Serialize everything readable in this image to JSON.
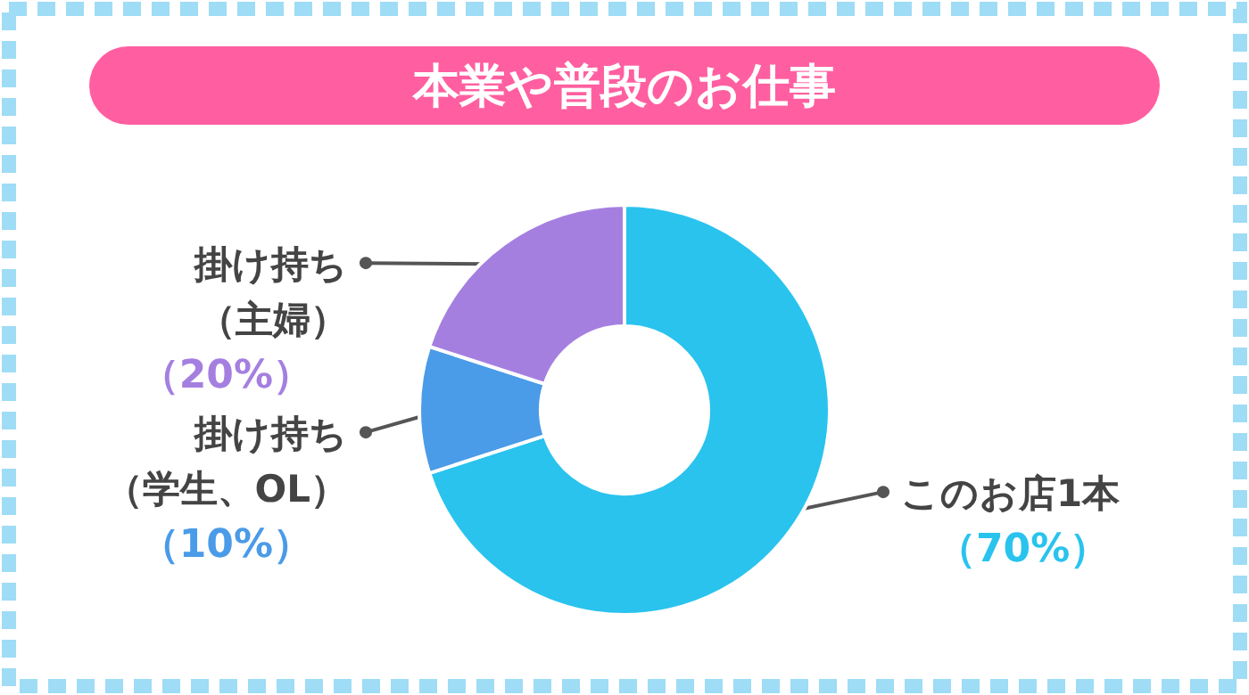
{
  "chart_data": {
    "type": "donut",
    "title": "本業や普段のお仕事",
    "categories": [
      "このお店1本",
      "掛け持ち（学生、OL）",
      "掛け持ち（主婦）"
    ],
    "values": [
      70,
      10,
      20
    ],
    "colors": [
      "#29c3ee",
      "#4a9be8",
      "#a57fe0"
    ],
    "value_labels": [
      "（70%）",
      "（10%）",
      "（20%）"
    ]
  }
}
